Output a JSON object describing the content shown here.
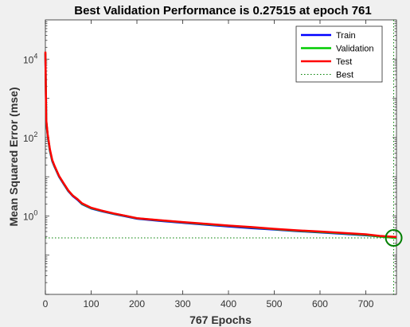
{
  "chart_data": {
    "type": "line",
    "title": "Best Validation Performance is 0.27515 at epoch 761",
    "xlabel": "767 Epochs",
    "ylabel": "Mean Squared Error  (mse)",
    "xlim": [
      0,
      767
    ],
    "ylim": [
      0.01,
      100000
    ],
    "yscale": "log",
    "x_ticks": [
      0,
      100,
      200,
      300,
      400,
      500,
      600,
      700
    ],
    "y_ticks": [
      {
        "value": 1,
        "label": "10",
        "exp": "0"
      },
      {
        "value": 100,
        "label": "10",
        "exp": "2"
      },
      {
        "value": 10000,
        "label": "10",
        "exp": "4"
      }
    ],
    "grid": false,
    "legend_position": "top-right",
    "best": {
      "epoch": 761,
      "value": 0.27515,
      "marker": "circle",
      "color": "#007f00"
    },
    "series": [
      {
        "name": "Train",
        "color": "#0000ff",
        "x": [
          0,
          2,
          5,
          10,
          15,
          20,
          30,
          40,
          50,
          60,
          70,
          80,
          100,
          125,
          150,
          175,
          200,
          250,
          300,
          350,
          400,
          450,
          500,
          550,
          600,
          650,
          700,
          730,
          767
        ],
        "y": [
          14000,
          250,
          110,
          45,
          25,
          18,
          10,
          6.5,
          4.3,
          3.2,
          2.6,
          2.0,
          1.55,
          1.3,
          1.12,
          0.98,
          0.85,
          0.75,
          0.67,
          0.6,
          0.54,
          0.49,
          0.45,
          0.41,
          0.38,
          0.35,
          0.32,
          0.3,
          0.28
        ]
      },
      {
        "name": "Validation",
        "color": "#00cc00",
        "x": [
          0,
          2,
          5,
          10,
          15,
          20,
          30,
          40,
          50,
          60,
          70,
          80,
          100,
          125,
          150,
          175,
          200,
          250,
          300,
          350,
          400,
          450,
          500,
          550,
          600,
          650,
          700,
          730,
          767
        ],
        "y": [
          14500,
          260,
          115,
          47,
          26,
          18.5,
          10.3,
          6.7,
          4.4,
          3.3,
          2.7,
          2.05,
          1.58,
          1.33,
          1.14,
          1.0,
          0.87,
          0.77,
          0.69,
          0.62,
          0.56,
          0.51,
          0.46,
          0.42,
          0.39,
          0.36,
          0.33,
          0.3,
          0.275
        ]
      },
      {
        "name": "Test",
        "color": "#ff0000",
        "x": [
          0,
          2,
          5,
          10,
          15,
          20,
          30,
          40,
          50,
          60,
          70,
          80,
          100,
          125,
          150,
          175,
          200,
          250,
          300,
          350,
          400,
          450,
          500,
          550,
          600,
          650,
          700,
          730,
          767
        ],
        "y": [
          15500,
          280,
          120,
          50,
          27,
          19,
          10.5,
          6.8,
          4.5,
          3.3,
          2.7,
          2.1,
          1.62,
          1.35,
          1.16,
          1.01,
          0.88,
          0.78,
          0.7,
          0.63,
          0.57,
          0.52,
          0.47,
          0.43,
          0.4,
          0.37,
          0.34,
          0.31,
          0.29
        ]
      }
    ],
    "legend_best_label": "Best"
  }
}
